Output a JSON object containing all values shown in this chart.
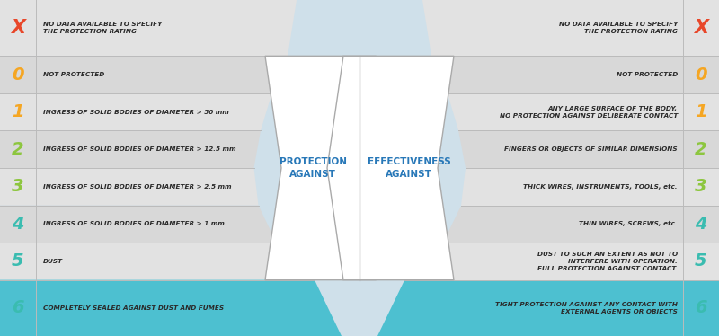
{
  "bg_color": "#cfe0ea",
  "left_rows": [
    {
      "digit": "X",
      "digit_color": "#e8472a",
      "text": "NO DATA AVAILABLE TO SPECIFY\nTHE PROTECTION RATING",
      "row_bg": "#e2e2e2"
    },
    {
      "digit": "0",
      "digit_color": "#f5a623",
      "text": "NOT PROTECTED",
      "row_bg": "#d8d8d8"
    },
    {
      "digit": "1",
      "digit_color": "#f5a623",
      "text": "INGRESS OF SOLID BODIES OF DIAMETER > 50 mm",
      "row_bg": "#e2e2e2"
    },
    {
      "digit": "2",
      "digit_color": "#8dc63f",
      "text": "INGRESS OF SOLID BODIES OF DIAMETER > 12.5 mm",
      "row_bg": "#d8d8d8"
    },
    {
      "digit": "3",
      "digit_color": "#8dc63f",
      "text": "INGRESS OF SOLID BODIES OF DIAMETER > 2.5 mm",
      "row_bg": "#e2e2e2"
    },
    {
      "digit": "4",
      "digit_color": "#3abcb0",
      "text": "INGRESS OF SOLID BODIES OF DIAMETER > 1 mm",
      "row_bg": "#d8d8d8"
    },
    {
      "digit": "5",
      "digit_color": "#3abcb0",
      "text": "DUST",
      "row_bg": "#e2e2e2"
    },
    {
      "digit": "6",
      "digit_color": "#3abcb0",
      "text": "COMPLETELY SEALED AGAINST DUST AND FUMES",
      "row_bg": "#4dc0d0"
    }
  ],
  "right_rows": [
    {
      "digit": "X",
      "digit_color": "#e8472a",
      "text": "NO DATA AVAILABLE TO SPECIFY\nTHE PROTECTION RATING",
      "row_bg": "#e2e2e2"
    },
    {
      "digit": "0",
      "digit_color": "#f5a623",
      "text": "NOT PROTECTED",
      "row_bg": "#d8d8d8"
    },
    {
      "digit": "1",
      "digit_color": "#f5a623",
      "text": "ANY LARGE SURFACE OF THE BODY,\nNO PROTECTION AGAINST DELIBERATE CONTACT",
      "row_bg": "#e2e2e2"
    },
    {
      "digit": "2",
      "digit_color": "#8dc63f",
      "text": "FINGERS OR OBJECTS OF SIMILAR DIMENSIONS",
      "row_bg": "#d8d8d8"
    },
    {
      "digit": "3",
      "digit_color": "#8dc63f",
      "text": "THICK WIRES, INSTRUMENTS, TOOLS, etc.",
      "row_bg": "#e2e2e2"
    },
    {
      "digit": "4",
      "digit_color": "#3abcb0",
      "text": "THIN WIRES, SCREWS, etc.",
      "row_bg": "#d8d8d8"
    },
    {
      "digit": "5",
      "digit_color": "#3abcb0",
      "text": "DUST TO SUCH AN EXTENT AS NOT TO\nINTERFERE WITH OPERATION.\nFULL PROTECTION AGAINST CONTACT.",
      "row_bg": "#e2e2e2"
    },
    {
      "digit": "6",
      "digit_color": "#3abcb0",
      "text": "TIGHT PROTECTION AGAINST ANY CONTACT WITH\nEXTERNAL AGENTS OR OBJECTS",
      "row_bg": "#4dc0d0"
    }
  ],
  "center_left_label": "PROTECTION\nAGAINST",
  "center_right_label": "EFFECTIVENESS\nAGAINST",
  "center_label_color": "#2878b8",
  "row_heights_norm": [
    1.35,
    0.9,
    0.9,
    0.9,
    0.9,
    0.9,
    0.9,
    1.35
  ]
}
